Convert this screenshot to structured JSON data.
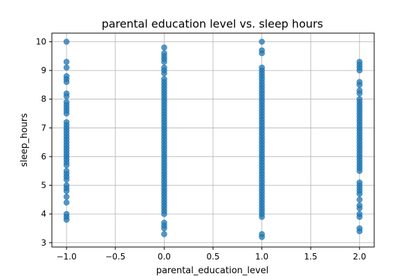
{
  "chart_data": {
    "type": "scatter",
    "title": "parental education level vs. sleep hours",
    "xlabel": "parental_education_level",
    "ylabel": "sleep_hours",
    "xlim": [
      -1.15,
      2.15
    ],
    "ylim": [
      2.85,
      10.3
    ],
    "x_ticks": [
      -1.0,
      -0.5,
      0.0,
      0.5,
      1.0,
      1.5,
      2.0
    ],
    "x_tick_labels": [
      "−1.0",
      "−0.5",
      "0.0",
      "0.5",
      "1.0",
      "1.5",
      "2.0"
    ],
    "y_ticks": [
      3,
      4,
      5,
      6,
      7,
      8,
      9,
      10
    ],
    "y_tick_labels": [
      "3",
      "4",
      "5",
      "6",
      "7",
      "8",
      "9",
      "10"
    ],
    "grid": true,
    "color": "#1f77b4",
    "points": [
      {
        "x": -1,
        "y": 10.0
      },
      {
        "x": -1,
        "y": 9.3
      },
      {
        "x": -1,
        "y": 9.1
      },
      {
        "x": -1,
        "y": 8.8
      },
      {
        "x": -1,
        "y": 8.7
      },
      {
        "x": -1,
        "y": 8.6
      },
      {
        "x": -1,
        "y": 8.2
      },
      {
        "x": -1,
        "y": 8.1
      },
      {
        "x": -1,
        "y": 7.9
      },
      {
        "x": -1,
        "y": 7.8
      },
      {
        "x": -1,
        "y": 7.7
      },
      {
        "x": -1,
        "y": 7.6
      },
      {
        "x": -1,
        "y": 7.5
      },
      {
        "x": -1,
        "y": 7.2
      },
      {
        "x": -1,
        "y": 7.1
      },
      {
        "x": -1,
        "y": 7.0
      },
      {
        "x": -1,
        "y": 6.9
      },
      {
        "x": -1,
        "y": 6.8
      },
      {
        "x": -1,
        "y": 6.7
      },
      {
        "x": -1,
        "y": 6.6
      },
      {
        "x": -1,
        "y": 6.5
      },
      {
        "x": -1,
        "y": 6.4
      },
      {
        "x": -1,
        "y": 6.3
      },
      {
        "x": -1,
        "y": 6.2
      },
      {
        "x": -1,
        "y": 6.1
      },
      {
        "x": -1,
        "y": 6.0
      },
      {
        "x": -1,
        "y": 5.9
      },
      {
        "x": -1,
        "y": 5.8
      },
      {
        "x": -1,
        "y": 5.7
      },
      {
        "x": -1,
        "y": 5.5
      },
      {
        "x": -1,
        "y": 5.4
      },
      {
        "x": -1,
        "y": 5.3
      },
      {
        "x": -1,
        "y": 5.2
      },
      {
        "x": -1,
        "y": 5.0
      },
      {
        "x": -1,
        "y": 4.9
      },
      {
        "x": -1,
        "y": 4.8
      },
      {
        "x": -1,
        "y": 4.6
      },
      {
        "x": -1,
        "y": 4.4
      },
      {
        "x": -1,
        "y": 4.0
      },
      {
        "x": -1,
        "y": 3.9
      },
      {
        "x": -1,
        "y": 3.8
      },
      {
        "x": 0,
        "y": 9.8
      },
      {
        "x": 0,
        "y": 9.6
      },
      {
        "x": 0,
        "y": 9.5
      },
      {
        "x": 0,
        "y": 9.4
      },
      {
        "x": 0,
        "y": 9.3
      },
      {
        "x": 0,
        "y": 9.1
      },
      {
        "x": 0,
        "y": 9.0
      },
      {
        "x": 0,
        "y": 8.9
      },
      {
        "x": 0,
        "y": 8.7
      },
      {
        "x": 0,
        "y": 8.6
      },
      {
        "x": 0,
        "y": 8.5
      },
      {
        "x": 0,
        "y": 8.4
      },
      {
        "x": 0,
        "y": 8.3
      },
      {
        "x": 0,
        "y": 8.2
      },
      {
        "x": 0,
        "y": 8.1
      },
      {
        "x": 0,
        "y": 8.0
      },
      {
        "x": 0,
        "y": 7.9
      },
      {
        "x": 0,
        "y": 7.8
      },
      {
        "x": 0,
        "y": 7.7
      },
      {
        "x": 0,
        "y": 7.6
      },
      {
        "x": 0,
        "y": 7.5
      },
      {
        "x": 0,
        "y": 7.4
      },
      {
        "x": 0,
        "y": 7.3
      },
      {
        "x": 0,
        "y": 7.2
      },
      {
        "x": 0,
        "y": 7.1
      },
      {
        "x": 0,
        "y": 7.0
      },
      {
        "x": 0,
        "y": 6.9
      },
      {
        "x": 0,
        "y": 6.8
      },
      {
        "x": 0,
        "y": 6.7
      },
      {
        "x": 0,
        "y": 6.6
      },
      {
        "x": 0,
        "y": 6.5
      },
      {
        "x": 0,
        "y": 6.4
      },
      {
        "x": 0,
        "y": 6.3
      },
      {
        "x": 0,
        "y": 6.2
      },
      {
        "x": 0,
        "y": 6.1
      },
      {
        "x": 0,
        "y": 6.0
      },
      {
        "x": 0,
        "y": 5.9
      },
      {
        "x": 0,
        "y": 5.8
      },
      {
        "x": 0,
        "y": 5.7
      },
      {
        "x": 0,
        "y": 5.6
      },
      {
        "x": 0,
        "y": 5.5
      },
      {
        "x": 0,
        "y": 5.4
      },
      {
        "x": 0,
        "y": 5.3
      },
      {
        "x": 0,
        "y": 5.2
      },
      {
        "x": 0,
        "y": 5.1
      },
      {
        "x": 0,
        "y": 5.0
      },
      {
        "x": 0,
        "y": 4.9
      },
      {
        "x": 0,
        "y": 4.8
      },
      {
        "x": 0,
        "y": 4.7
      },
      {
        "x": 0,
        "y": 4.6
      },
      {
        "x": 0,
        "y": 4.5
      },
      {
        "x": 0,
        "y": 4.4
      },
      {
        "x": 0,
        "y": 4.3
      },
      {
        "x": 0,
        "y": 4.2
      },
      {
        "x": 0,
        "y": 4.1
      },
      {
        "x": 0,
        "y": 4.0
      },
      {
        "x": 0,
        "y": 3.7
      },
      {
        "x": 0,
        "y": 3.6
      },
      {
        "x": 0,
        "y": 3.5
      },
      {
        "x": 0,
        "y": 3.3
      },
      {
        "x": 1,
        "y": 10.0
      },
      {
        "x": 1,
        "y": 9.7
      },
      {
        "x": 1,
        "y": 9.6
      },
      {
        "x": 1,
        "y": 9.1
      },
      {
        "x": 1,
        "y": 9.0
      },
      {
        "x": 1,
        "y": 8.9
      },
      {
        "x": 1,
        "y": 8.8
      },
      {
        "x": 1,
        "y": 8.7
      },
      {
        "x": 1,
        "y": 8.6
      },
      {
        "x": 1,
        "y": 8.5
      },
      {
        "x": 1,
        "y": 8.4
      },
      {
        "x": 1,
        "y": 8.3
      },
      {
        "x": 1,
        "y": 8.2
      },
      {
        "x": 1,
        "y": 8.1
      },
      {
        "x": 1,
        "y": 8.0
      },
      {
        "x": 1,
        "y": 7.9
      },
      {
        "x": 1,
        "y": 7.8
      },
      {
        "x": 1,
        "y": 7.7
      },
      {
        "x": 1,
        "y": 7.6
      },
      {
        "x": 1,
        "y": 7.5
      },
      {
        "x": 1,
        "y": 7.4
      },
      {
        "x": 1,
        "y": 7.3
      },
      {
        "x": 1,
        "y": 7.2
      },
      {
        "x": 1,
        "y": 7.1
      },
      {
        "x": 1,
        "y": 7.0
      },
      {
        "x": 1,
        "y": 6.9
      },
      {
        "x": 1,
        "y": 6.8
      },
      {
        "x": 1,
        "y": 6.7
      },
      {
        "x": 1,
        "y": 6.6
      },
      {
        "x": 1,
        "y": 6.5
      },
      {
        "x": 1,
        "y": 6.4
      },
      {
        "x": 1,
        "y": 6.3
      },
      {
        "x": 1,
        "y": 6.2
      },
      {
        "x": 1,
        "y": 6.1
      },
      {
        "x": 1,
        "y": 6.0
      },
      {
        "x": 1,
        "y": 5.9
      },
      {
        "x": 1,
        "y": 5.8
      },
      {
        "x": 1,
        "y": 5.7
      },
      {
        "x": 1,
        "y": 5.6
      },
      {
        "x": 1,
        "y": 5.5
      },
      {
        "x": 1,
        "y": 5.4
      },
      {
        "x": 1,
        "y": 5.3
      },
      {
        "x": 1,
        "y": 5.2
      },
      {
        "x": 1,
        "y": 5.1
      },
      {
        "x": 1,
        "y": 5.0
      },
      {
        "x": 1,
        "y": 4.9
      },
      {
        "x": 1,
        "y": 4.8
      },
      {
        "x": 1,
        "y": 4.7
      },
      {
        "x": 1,
        "y": 4.6
      },
      {
        "x": 1,
        "y": 4.5
      },
      {
        "x": 1,
        "y": 4.4
      },
      {
        "x": 1,
        "y": 4.3
      },
      {
        "x": 1,
        "y": 4.2
      },
      {
        "x": 1,
        "y": 4.1
      },
      {
        "x": 1,
        "y": 4.0
      },
      {
        "x": 1,
        "y": 3.9
      },
      {
        "x": 1,
        "y": 3.3
      },
      {
        "x": 1,
        "y": 3.2
      },
      {
        "x": 2,
        "y": 9.3
      },
      {
        "x": 2,
        "y": 9.2
      },
      {
        "x": 2,
        "y": 9.1
      },
      {
        "x": 2,
        "y": 9.0
      },
      {
        "x": 2,
        "y": 8.6
      },
      {
        "x": 2,
        "y": 8.5
      },
      {
        "x": 2,
        "y": 8.3
      },
      {
        "x": 2,
        "y": 8.2
      },
      {
        "x": 2,
        "y": 8.0
      },
      {
        "x": 2,
        "y": 7.9
      },
      {
        "x": 2,
        "y": 7.8
      },
      {
        "x": 2,
        "y": 7.7
      },
      {
        "x": 2,
        "y": 7.6
      },
      {
        "x": 2,
        "y": 7.5
      },
      {
        "x": 2,
        "y": 7.4
      },
      {
        "x": 2,
        "y": 7.3
      },
      {
        "x": 2,
        "y": 7.2
      },
      {
        "x": 2,
        "y": 7.1
      },
      {
        "x": 2,
        "y": 7.0
      },
      {
        "x": 2,
        "y": 6.9
      },
      {
        "x": 2,
        "y": 6.8
      },
      {
        "x": 2,
        "y": 6.7
      },
      {
        "x": 2,
        "y": 6.6
      },
      {
        "x": 2,
        "y": 6.5
      },
      {
        "x": 2,
        "y": 6.4
      },
      {
        "x": 2,
        "y": 6.3
      },
      {
        "x": 2,
        "y": 6.2
      },
      {
        "x": 2,
        "y": 6.1
      },
      {
        "x": 2,
        "y": 6.0
      },
      {
        "x": 2,
        "y": 5.9
      },
      {
        "x": 2,
        "y": 5.8
      },
      {
        "x": 2,
        "y": 5.7
      },
      {
        "x": 2,
        "y": 5.6
      },
      {
        "x": 2,
        "y": 5.5
      },
      {
        "x": 2,
        "y": 5.1
      },
      {
        "x": 2,
        "y": 5.0
      },
      {
        "x": 2,
        "y": 4.9
      },
      {
        "x": 2,
        "y": 4.8
      },
      {
        "x": 2,
        "y": 4.7
      },
      {
        "x": 2,
        "y": 4.5
      },
      {
        "x": 2,
        "y": 4.3
      },
      {
        "x": 2,
        "y": 4.2
      },
      {
        "x": 2,
        "y": 4.0
      },
      {
        "x": 2,
        "y": 3.9
      },
      {
        "x": 2,
        "y": 3.5
      },
      {
        "x": 2,
        "y": 3.4
      }
    ]
  }
}
